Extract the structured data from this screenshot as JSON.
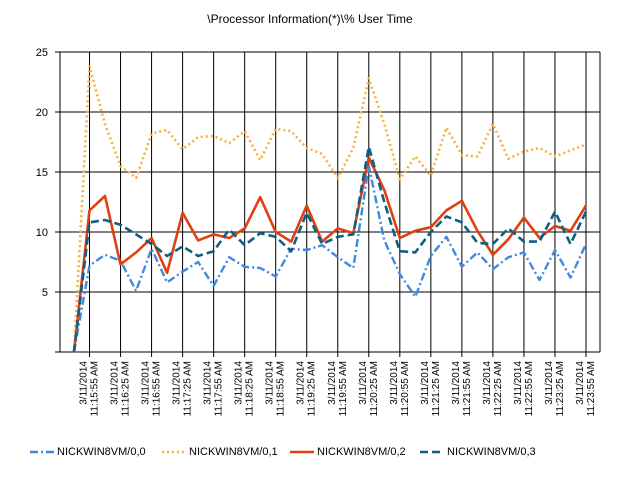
{
  "chart_data": {
    "type": "line",
    "title": "\\Processor Information(*)\\% User Time",
    "xlabel": "",
    "ylabel": "",
    "ylim": [
      0,
      25
    ],
    "yticks": [
      5,
      10,
      15,
      20,
      25
    ],
    "grid": true,
    "legend": "bottom",
    "x_labels": [
      "3/11/2014 11:15:55 AM",
      "3/11/2014 11:16:25 AM",
      "3/11/2014 11:16:55 AM",
      "3/11/2014 11:17:25 AM",
      "3/11/2014 11:17:55 AM",
      "3/11/2014 11:18:25 AM",
      "3/11/2014 11:18:55 AM",
      "3/11/2014 11:19:25 AM",
      "3/11/2014 11:19:55 AM",
      "3/11/2014 11:20:25 AM",
      "3/11/2014 11:20:55 AM",
      "3/11/2014 11:21:25 AM",
      "3/11/2014 11:21:55 AM",
      "3/11/2014 11:22:25 AM",
      "3/11/2014 11:22:55 AM",
      "3/11/2014 11:23:25 AM",
      "3/11/2014 11:23:55 AM"
    ],
    "series": [
      {
        "name": "NICKWIN8VM/0,0",
        "color": "#3f8ae0",
        "dash": "dashdot",
        "values": [
          0,
          7.2,
          8.1,
          7.6,
          5.1,
          8.6,
          5.8,
          6.7,
          7.5,
          5.5,
          7.9,
          7.1,
          7.0,
          6.3,
          8.6,
          8.5,
          8.9,
          7.9,
          7.0,
          15.5,
          9.3,
          6.5,
          4.6,
          8.0,
          9.6,
          7.1,
          8.3,
          6.9,
          7.9,
          8.3,
          6.0,
          8.5,
          6.2,
          9.0
        ]
      },
      {
        "name": "NICKWIN8VM/0,1",
        "color": "#f8b040",
        "dash": "dot",
        "values": [
          0,
          23.8,
          19.0,
          15.5,
          14.5,
          18.2,
          18.5,
          16.9,
          17.9,
          18.0,
          17.4,
          18.4,
          16.0,
          18.6,
          18.4,
          17.0,
          16.5,
          14.5,
          17.0,
          22.8,
          19.0,
          14.4,
          16.3,
          14.7,
          18.7,
          16.4,
          16.3,
          19.0,
          16.1,
          16.7,
          17.0,
          16.3,
          16.8,
          17.3
        ]
      },
      {
        "name": "NICKWIN8VM/0,2",
        "color": "#e04010",
        "dash": "solid",
        "values": [
          0,
          11.8,
          13.0,
          7.3,
          8.3,
          9.5,
          6.6,
          11.6,
          9.3,
          9.8,
          9.5,
          10.3,
          12.9,
          10.0,
          9.2,
          12.2,
          9.2,
          10.3,
          9.9,
          16.2,
          13.5,
          9.5,
          10.1,
          10.4,
          11.8,
          12.6,
          10.1,
          8.1,
          9.4,
          11.2,
          9.5,
          10.5,
          10.1,
          12.2
        ]
      },
      {
        "name": "NICKWIN8VM/0,3",
        "color": "#0e5f84",
        "dash": "dash",
        "values": [
          0,
          10.8,
          11.0,
          10.6,
          9.8,
          9.0,
          8.0,
          8.8,
          8.0,
          8.4,
          10.2,
          8.9,
          9.9,
          9.6,
          8.4,
          11.6,
          9.0,
          9.6,
          9.8,
          17.1,
          12.5,
          8.4,
          8.3,
          10.0,
          11.3,
          10.8,
          9.1,
          9.0,
          10.3,
          9.2,
          9.2,
          11.7,
          9.0,
          11.7
        ]
      }
    ]
  }
}
